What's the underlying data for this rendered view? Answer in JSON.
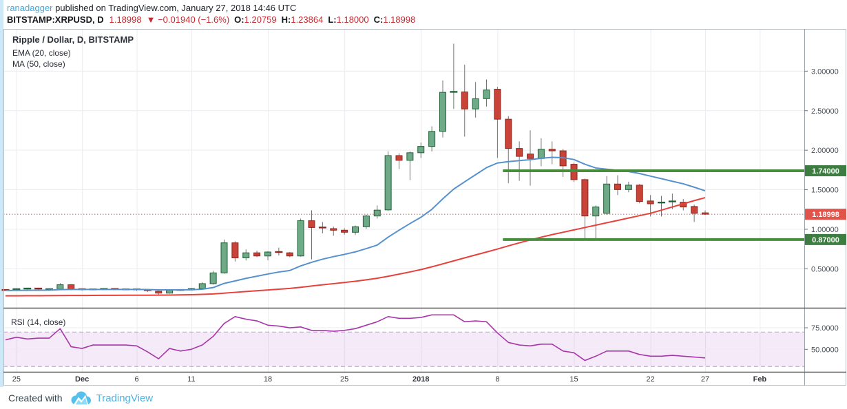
{
  "header": {
    "author": "ranadagger",
    "published": " published on TradingView.com, January 27, 2018 14:46 UTC",
    "symbol": "BITSTAMP:XRPUSD, D",
    "last_price": "1.18998",
    "change": "▼ −0.01940 (−1.6%)",
    "o_label": "O:",
    "o_value": "1.20759",
    "h_label": "H:",
    "h_value": "1.23864",
    "l_label": "L:",
    "l_value": "1.18000",
    "c_label": "C:",
    "c_value": "1.18998"
  },
  "legend": {
    "title": "Ripple / Dollar, D, BITSTAMP",
    "ema": "EMA (20, close)",
    "ma": "MA (50, close)",
    "rsi": "RSI (14, close)"
  },
  "footer": {
    "created_with": "Created with",
    "brand": "TradingView"
  },
  "colors": {
    "up_fill": "#6ea988",
    "up_border": "#1f6134",
    "down_fill": "#ca4338",
    "down_border": "#8f261d",
    "wick": "#737375",
    "ema": "#5691ce",
    "ma": "#e8403b",
    "rsi": "#a836aa",
    "band_fill": "rgba(180,90,190,0.13)",
    "band_edge": "#b2a3bd",
    "level": "#4a8c3d",
    "level_plate": "#3e7d41",
    "last_price": "#e1544b",
    "grid": "#ececf1",
    "axis_text": "#4a4f57",
    "frame": "#b7bcc4",
    "divider": "#595959"
  },
  "chart_data": {
    "type": "candlestick",
    "title": "Ripple / Dollar, D, BITSTAMP",
    "exchange": "BITSTAMP",
    "symbol": "XRPUSD",
    "interval": "D",
    "price_visible_range": [
      0.02,
      3.53
    ],
    "grid": true,
    "candles_format": [
      "date",
      "open",
      "high",
      "low",
      "close"
    ],
    "candles": [
      [
        "Nov 24",
        0.232,
        0.242,
        0.222,
        0.225
      ],
      [
        "Nov 25",
        0.225,
        0.252,
        0.218,
        0.242
      ],
      [
        "Nov 26",
        0.242,
        0.258,
        0.235,
        0.25
      ],
      [
        "Nov 27",
        0.25,
        0.255,
        0.232,
        0.238
      ],
      [
        "Nov 28",
        0.238,
        0.248,
        0.23,
        0.242
      ],
      [
        "Nov 29",
        0.242,
        0.318,
        0.236,
        0.298
      ],
      [
        "Nov 30",
        0.298,
        0.305,
        0.228,
        0.242
      ],
      [
        "Dec 1",
        0.242,
        0.252,
        0.225,
        0.232
      ],
      [
        "Dec 2",
        0.232,
        0.245,
        0.228,
        0.24
      ],
      [
        "Dec 3",
        0.24,
        0.25,
        0.232,
        0.245
      ],
      [
        "Dec 4",
        0.245,
        0.25,
        0.23,
        0.238
      ],
      [
        "Dec 5",
        0.238,
        0.246,
        0.228,
        0.24
      ],
      [
        "Dec 6",
        0.24,
        0.244,
        0.222,
        0.23
      ],
      [
        "Dec 7",
        0.23,
        0.236,
        0.205,
        0.215
      ],
      [
        "Dec 8",
        0.215,
        0.222,
        0.172,
        0.192
      ],
      [
        "Dec 9",
        0.192,
        0.235,
        0.185,
        0.228
      ],
      [
        "Dec 10",
        0.228,
        0.24,
        0.218,
        0.232
      ],
      [
        "Dec 11",
        0.232,
        0.258,
        0.225,
        0.25
      ],
      [
        "Dec 12",
        0.25,
        0.33,
        0.242,
        0.312
      ],
      [
        "Dec 13",
        0.312,
        0.475,
        0.3,
        0.448
      ],
      [
        "Dec 14",
        0.448,
        0.87,
        0.438,
        0.828
      ],
      [
        "Dec 15",
        0.828,
        0.848,
        0.592,
        0.638
      ],
      [
        "Dec 16",
        0.638,
        0.745,
        0.605,
        0.702
      ],
      [
        "Dec 17",
        0.702,
        0.728,
        0.648,
        0.662
      ],
      [
        "Dec 18",
        0.662,
        0.722,
        0.608,
        0.712
      ],
      [
        "Dec 19",
        0.712,
        0.768,
        0.668,
        0.702
      ],
      [
        "Dec 20",
        0.702,
        0.712,
        0.648,
        0.662
      ],
      [
        "Dec 21",
        0.662,
        1.135,
        0.652,
        1.108
      ],
      [
        "Dec 22",
        1.108,
        1.24,
        0.618,
        1.022
      ],
      [
        "Dec 23",
        1.022,
        1.092,
        0.948,
        1.008
      ],
      [
        "Dec 24",
        1.008,
        1.035,
        0.918,
        0.988
      ],
      [
        "Dec 25",
        0.988,
        1.012,
        0.932,
        0.962
      ],
      [
        "Dec 26",
        0.962,
        1.048,
        0.928,
        1.032
      ],
      [
        "Dec 27",
        1.032,
        1.185,
        1.005,
        1.168
      ],
      [
        "Dec 28",
        1.168,
        1.302,
        1.135,
        1.242
      ],
      [
        "Dec 29",
        1.245,
        1.985,
        1.232,
        1.932
      ],
      [
        "Dec 30",
        1.932,
        1.962,
        1.762,
        1.872
      ],
      [
        "Dec 31",
        1.872,
        1.985,
        1.622,
        1.968
      ],
      [
        "Jan 1",
        1.968,
        2.098,
        1.902,
        2.048
      ],
      [
        "Jan 2",
        2.048,
        2.302,
        1.985,
        2.238
      ],
      [
        "Jan 3",
        2.238,
        2.882,
        2.162,
        2.732
      ],
      [
        "Jan 4",
        2.722,
        3.348,
        2.522,
        2.738
      ],
      [
        "Jan 5",
        2.738,
        3.082,
        2.172,
        2.522
      ],
      [
        "Jan 6",
        2.522,
        2.862,
        2.412,
        2.652
      ],
      [
        "Jan 7",
        2.652,
        2.895,
        2.552,
        2.762
      ],
      [
        "Jan 8",
        2.772,
        2.802,
        1.902,
        2.392
      ],
      [
        "Jan 9",
        2.392,
        2.432,
        1.582,
        2.022
      ],
      [
        "Jan 10",
        2.022,
        2.112,
        1.612,
        1.922
      ],
      [
        "Jan 11",
        1.952,
        2.252,
        1.552,
        1.895
      ],
      [
        "Jan 12",
        1.895,
        2.152,
        1.798,
        2.012
      ],
      [
        "Jan 13",
        2.012,
        2.112,
        1.822,
        1.992
      ],
      [
        "Jan 14",
        1.992,
        2.018,
        1.662,
        1.802
      ],
      [
        "Jan 15",
        1.822,
        1.842,
        1.598,
        1.628
      ],
      [
        "Jan 16",
        1.628,
        1.642,
        0.862,
        1.168
      ],
      [
        "Jan 17",
        1.168,
        1.302,
        0.858,
        1.282
      ],
      [
        "Jan 18",
        1.202,
        1.672,
        1.182,
        1.572
      ],
      [
        "Jan 19",
        1.572,
        1.682,
        1.432,
        1.502
      ],
      [
        "Jan 20",
        1.502,
        1.602,
        1.468,
        1.558
      ],
      [
        "Jan 21",
        1.558,
        1.572,
        1.328,
        1.352
      ],
      [
        "Jan 22",
        1.358,
        1.432,
        1.162,
        1.322
      ],
      [
        "Jan 23",
        1.322,
        1.422,
        1.162,
        1.338
      ],
      [
        "Jan 24",
        1.338,
        1.452,
        1.252,
        1.352
      ],
      [
        "Jan 25",
        1.342,
        1.382,
        1.238,
        1.282
      ],
      [
        "Jan 26",
        1.288,
        1.312,
        1.092,
        1.202
      ],
      [
        "Jan 27",
        1.20759,
        1.23864,
        1.18,
        1.18998
      ]
    ],
    "series": [
      {
        "name": "EMA (20, close)",
        "values": [
          0.225,
          0.226,
          0.228,
          0.229,
          0.23,
          0.236,
          0.238,
          0.238,
          0.238,
          0.239,
          0.239,
          0.239,
          0.239,
          0.237,
          0.233,
          0.233,
          0.233,
          0.235,
          0.242,
          0.262,
          0.315,
          0.346,
          0.379,
          0.406,
          0.434,
          0.459,
          0.478,
          0.536,
          0.582,
          0.621,
          0.654,
          0.682,
          0.714,
          0.755,
          0.8,
          0.9,
          0.988,
          1.072,
          1.152,
          1.252,
          1.385,
          1.508,
          1.6,
          1.69,
          1.78,
          1.838,
          1.855,
          1.868,
          1.88,
          1.898,
          1.91,
          1.905,
          1.882,
          1.822,
          1.775,
          1.76,
          1.745,
          1.73,
          1.705,
          1.672,
          1.64,
          1.607,
          1.575,
          1.532,
          1.487
        ]
      },
      {
        "name": "MA (50, close)",
        "values": [
          0.158,
          0.158,
          0.159,
          0.159,
          0.16,
          0.161,
          0.162,
          0.162,
          0.163,
          0.164,
          0.164,
          0.165,
          0.166,
          0.166,
          0.167,
          0.168,
          0.17,
          0.172,
          0.176,
          0.182,
          0.192,
          0.202,
          0.212,
          0.222,
          0.232,
          0.242,
          0.252,
          0.266,
          0.282,
          0.297,
          0.312,
          0.327,
          0.342,
          0.36,
          0.38,
          0.405,
          0.432,
          0.46,
          0.49,
          0.525,
          0.562,
          0.6,
          0.638,
          0.675,
          0.712,
          0.75,
          0.79,
          0.828,
          0.865,
          0.9,
          0.932,
          0.962,
          0.992,
          1.022,
          1.052,
          1.082,
          1.112,
          1.142,
          1.172,
          1.202,
          1.242,
          1.282,
          1.322,
          1.362,
          1.4
        ]
      }
    ],
    "rsi14": {
      "name": "RSI (14, close)",
      "values": [
        61,
        64,
        62,
        63,
        63,
        74,
        53,
        51,
        55,
        55,
        55,
        55,
        54,
        47,
        39,
        51,
        48,
        50,
        55,
        65,
        80,
        88,
        85,
        83,
        78,
        77,
        75,
        76,
        72,
        72,
        71,
        72,
        74,
        78,
        82,
        88,
        86,
        86,
        87,
        90,
        90,
        90,
        82,
        83,
        82,
        69,
        58,
        55,
        54,
        56,
        56,
        48,
        46,
        37,
        42,
        48,
        48,
        48,
        44,
        42,
        42,
        43,
        42,
        41,
        40
      ],
      "band": [
        30,
        70
      ],
      "grid_levels": [
        75,
        50
      ]
    },
    "levels": {
      "start_i": 45.5,
      "items": [
        {
          "v": 1.74,
          "label": "1.74000"
        },
        {
          "v": 0.87,
          "label": "0.87000"
        }
      ]
    },
    "last_price": {
      "v": 1.18998,
      "label": "1.18998"
    },
    "price_ticks": [
      {
        "v": 3.0,
        "label": "3.00000"
      },
      {
        "v": 2.5,
        "label": "2.50000"
      },
      {
        "v": 2.0,
        "label": "2.00000"
      },
      {
        "v": 1.5,
        "label": "1.50000"
      },
      {
        "v": 1.0,
        "label": "1.00000"
      },
      {
        "v": 0.5,
        "label": "0.50000"
      }
    ],
    "rsi_ticks": [
      {
        "v": 75,
        "label": "75.0000"
      },
      {
        "v": 50,
        "label": "50.0000"
      }
    ],
    "time_ticks": [
      {
        "i": 1,
        "label": "25",
        "bold": false
      },
      {
        "i": 7,
        "label": "Dec",
        "bold": true
      },
      {
        "i": 12,
        "label": "6",
        "bold": false
      },
      {
        "i": 17,
        "label": "11",
        "bold": false
      },
      {
        "i": 24,
        "label": "18",
        "bold": false
      },
      {
        "i": 31,
        "label": "25",
        "bold": false
      },
      {
        "i": 38,
        "label": "2018",
        "bold": true
      },
      {
        "i": 45,
        "label": "8",
        "bold": false
      },
      {
        "i": 52,
        "label": "15",
        "bold": false
      },
      {
        "i": 59,
        "label": "22",
        "bold": false
      },
      {
        "i": 64,
        "label": "27",
        "bold": false
      },
      {
        "i": 69,
        "label": "Feb",
        "bold": true
      }
    ]
  }
}
